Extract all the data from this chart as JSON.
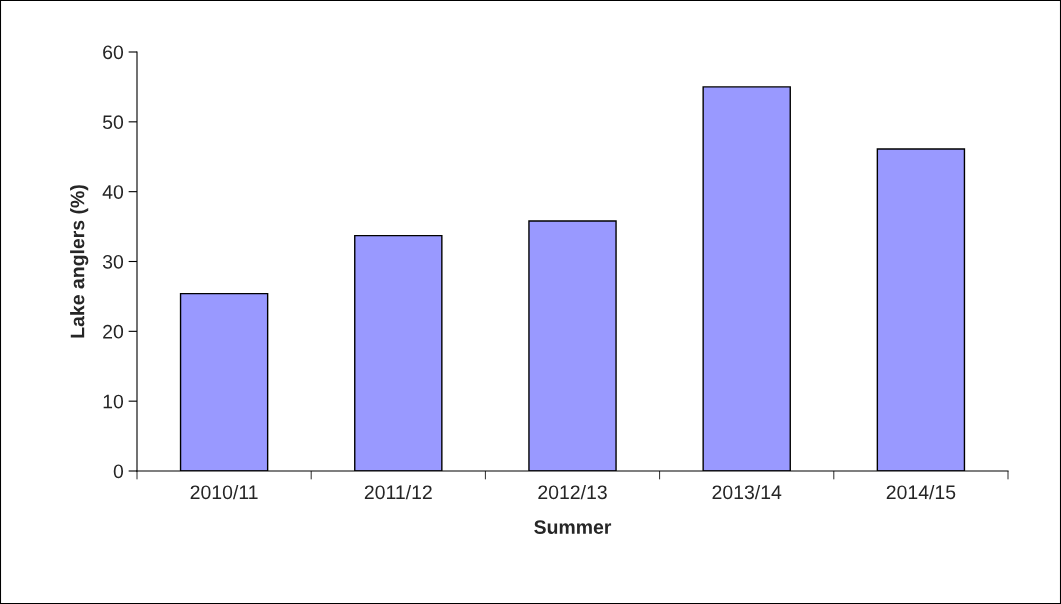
{
  "chart_data": {
    "type": "bar",
    "xlabel": "Summer",
    "ylabel": "Lake anglers (%)",
    "categories": [
      "2010/11",
      "2011/12",
      "2012/13",
      "2013/14",
      "2014/15"
    ],
    "values": [
      25.4,
      33.7,
      35.8,
      55.0,
      46.1
    ],
    "color": "#9999ff",
    "ylim": [
      0,
      60
    ],
    "yticks": [
      0,
      10,
      20,
      30,
      40,
      50,
      60
    ],
    "grid": false,
    "legend": false
  }
}
